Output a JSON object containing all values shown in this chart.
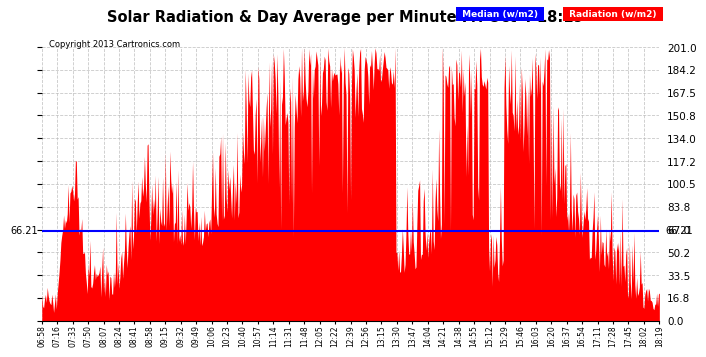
{
  "title": "Solar Radiation & Day Average per Minute Fri Oct 4 18:19",
  "copyright": "Copyright 2013 Cartronics.com",
  "median_value": 66.21,
  "y_max": 201.0,
  "y_ticks_right": [
    0.0,
    16.8,
    33.5,
    50.2,
    67.0,
    83.8,
    100.5,
    117.2,
    134.0,
    150.8,
    167.5,
    184.2,
    201.0
  ],
  "y_right_labels": [
    "0.0",
    "16.8",
    "33.5",
    "50.2",
    "67.0",
    "83.8",
    "100.5",
    "117.2",
    "134.0",
    "150.8",
    "167.5",
    "184.2",
    "201.0"
  ],
  "bar_color": "#FF0000",
  "median_color": "#0000FF",
  "bg_color": "#FFFFFF",
  "grid_color": "#BBBBBB",
  "title_color": "#000000",
  "x_tick_labels": [
    "06:58",
    "07:16",
    "07:33",
    "07:50",
    "08:07",
    "08:24",
    "08:41",
    "08:58",
    "09:15",
    "09:32",
    "09:49",
    "10:06",
    "10:23",
    "10:40",
    "10:57",
    "11:14",
    "11:31",
    "11:48",
    "12:05",
    "12:22",
    "12:39",
    "12:56",
    "13:15",
    "13:30",
    "13:47",
    "14:04",
    "14:21",
    "14:38",
    "14:55",
    "15:12",
    "15:29",
    "15:46",
    "16:03",
    "16:20",
    "16:37",
    "16:54",
    "17:11",
    "17:28",
    "17:45",
    "18:02",
    "18:19"
  ]
}
